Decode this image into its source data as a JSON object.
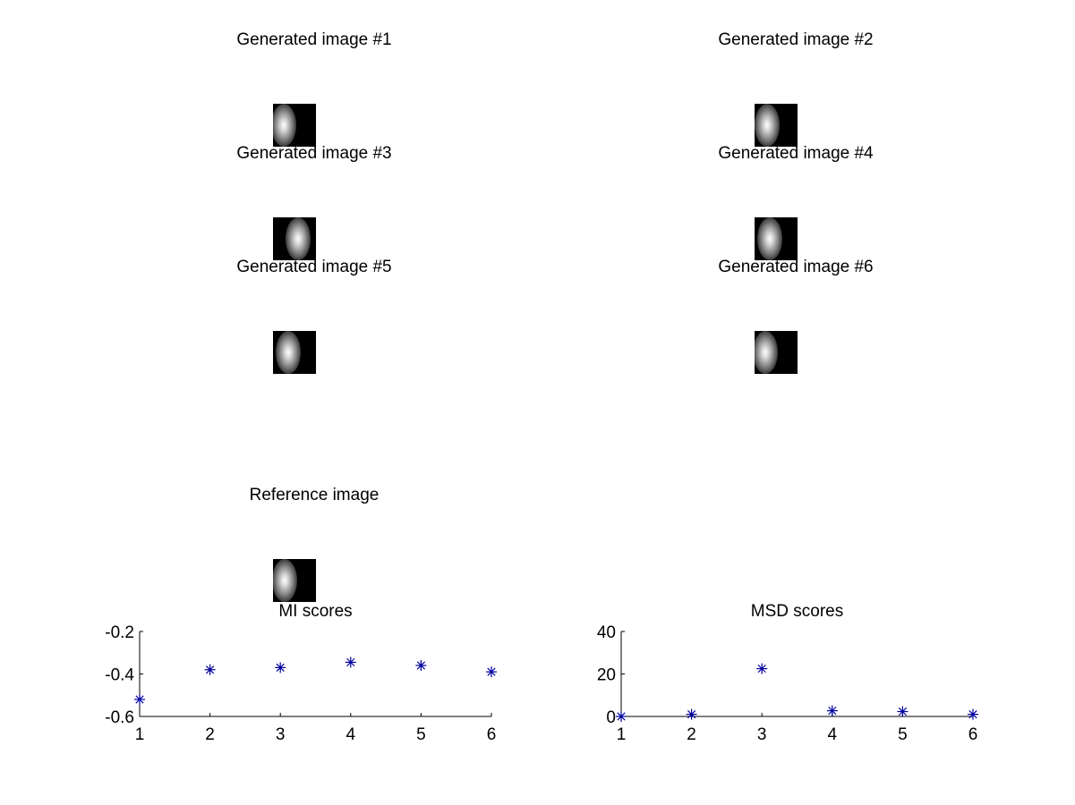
{
  "generated_titles": [
    "Generated image #1",
    "Generated image #2",
    "Generated image #3",
    "Generated image #4",
    "Generated image #5",
    "Generated image #6"
  ],
  "generated_blob_offsets": [
    0.25,
    0.3,
    0.58,
    0.35,
    0.35,
    0.25
  ],
  "reference_title": "Reference image",
  "reference_blob_offset": 0.28,
  "chart_data": [
    {
      "type": "scatter",
      "title": "MI scores",
      "xlabel": "",
      "ylabel": "",
      "x": [
        1,
        2,
        3,
        4,
        5,
        6
      ],
      "values": [
        -0.52,
        -0.38,
        -0.37,
        -0.345,
        -0.36,
        -0.39
      ],
      "xlim": [
        1,
        6
      ],
      "ylim": [
        -0.6,
        -0.2
      ],
      "yticks": [
        -0.6,
        -0.4,
        -0.2
      ],
      "ytick_labels": [
        "-0.6",
        "-0.4",
        "-0.2"
      ],
      "xticks": [
        1,
        2,
        3,
        4,
        5,
        6
      ],
      "xtick_labels": [
        "1",
        "2",
        "3",
        "4",
        "5",
        "6"
      ],
      "marker": "*",
      "color": "#0000a0",
      "grid": false
    },
    {
      "type": "scatter",
      "title": "MSD scores",
      "xlabel": "",
      "ylabel": "",
      "x": [
        1,
        2,
        3,
        4,
        5,
        6
      ],
      "values": [
        0,
        1,
        22.5,
        2.7,
        2.3,
        1
      ],
      "xlim": [
        1,
        6
      ],
      "ylim": [
        0,
        40
      ],
      "yticks": [
        0,
        20,
        40
      ],
      "ytick_labels": [
        "0",
        "20",
        "40"
      ],
      "xticks": [
        1,
        2,
        3,
        4,
        5,
        6
      ],
      "xtick_labels": [
        "1",
        "2",
        "3",
        "4",
        "5",
        "6"
      ],
      "marker": "*",
      "color": "#0000a0",
      "grid": false
    }
  ]
}
